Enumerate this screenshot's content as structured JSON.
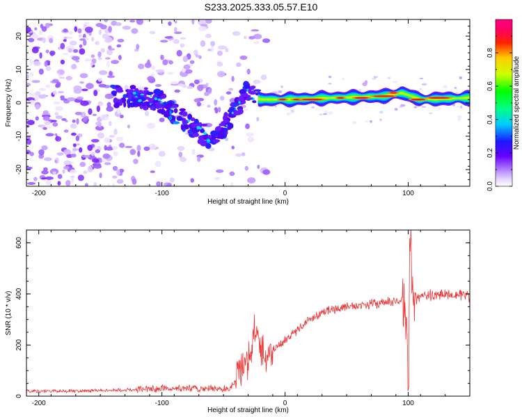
{
  "page": {
    "title": "S233.2025.333.05.57.E10"
  },
  "chart_data": [
    {
      "type": "heatmap",
      "title": "S233.2025.333.05.57.E10",
      "xlabel": "Height of straight line (km)",
      "ylabel": "Frequency (Hz)",
      "xlim": [
        -210,
        150
      ],
      "ylim": [
        -25,
        25
      ],
      "x_ticks": [
        -200,
        -100,
        0,
        100
      ],
      "x_tick_labels": [
        "-200",
        "-100",
        "0",
        "100"
      ],
      "y_ticks": [
        -20,
        -10,
        0,
        10,
        20
      ],
      "y_tick_labels": [
        "-20",
        "-10",
        "0",
        "10",
        "20"
      ],
      "colorbar": {
        "label": "Normalized spectral amplitude",
        "range": [
          0,
          1
        ],
        "ticks": [
          0.0,
          0.2,
          0.4,
          0.6,
          0.8
        ],
        "tick_labels": [
          "0.0",
          "0.2",
          "0.4",
          "0.6",
          "0.8"
        ],
        "colormap": "rainbow (white-violet-blue-cyan-green-yellow-red-magenta)"
      },
      "description_ridge": [
        {
          "x": -140,
          "freq": 2
        },
        {
          "x": -120,
          "freq": 2
        },
        {
          "x": -100,
          "freq": 0
        },
        {
          "x": -80,
          "freq": -6
        },
        {
          "x": -60,
          "freq": -11
        },
        {
          "x": -45,
          "freq": -5
        },
        {
          "x": -32,
          "freq": 3
        },
        {
          "x": -20,
          "freq": 1
        },
        {
          "x": 0,
          "freq": 1
        },
        {
          "x": 40,
          "freq": 1.5
        },
        {
          "x": 80,
          "freq": 2
        },
        {
          "x": 95,
          "freq": 3
        },
        {
          "x": 110,
          "freq": 1
        },
        {
          "x": 150,
          "freq": 1.5
        }
      ]
    },
    {
      "type": "line",
      "xlabel": "Height of straight line (km)",
      "ylabel": "SNR (10 * v/v)",
      "xlim": [
        -210,
        150
      ],
      "ylim": [
        0,
        650
      ],
      "x_ticks": [
        -200,
        -100,
        0,
        100
      ],
      "x_tick_labels": [
        "-200",
        "-100",
        "0",
        "100"
      ],
      "y_ticks": [
        0,
        200,
        400,
        600
      ],
      "y_tick_labels": [
        "0",
        "200",
        "400",
        "600"
      ],
      "color": "#ee3333",
      "series": [
        {
          "name": "SNR",
          "x": [
            -210,
            -180,
            -150,
            -120,
            -100,
            -80,
            -60,
            -45,
            -40,
            -35,
            -30,
            -25,
            -20,
            -15,
            -10,
            0,
            10,
            20,
            30,
            40,
            50,
            60,
            70,
            80,
            90,
            95,
            98,
            100,
            102,
            105,
            110,
            120,
            130,
            140,
            150
          ],
          "y": [
            20,
            20,
            22,
            25,
            30,
            30,
            28,
            30,
            60,
            120,
            150,
            250,
            200,
            150,
            180,
            220,
            260,
            300,
            330,
            340,
            350,
            355,
            360,
            365,
            370,
            380,
            300,
            20,
            560,
            380,
            390,
            395,
            400,
            400,
            390
          ]
        }
      ]
    }
  ]
}
